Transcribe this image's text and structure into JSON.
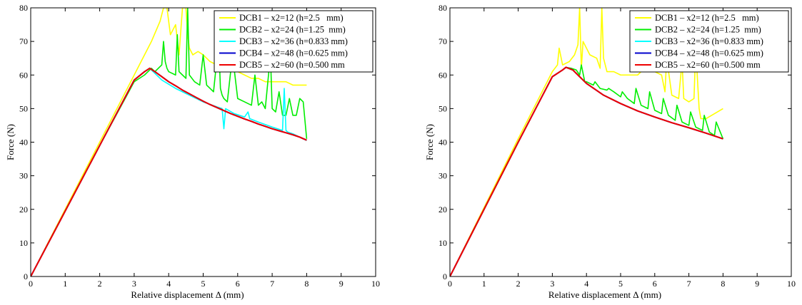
{
  "chart_data": [
    {
      "type": "line",
      "xlabel": "Relative displacement Δ (mm)",
      "ylabel": "Force (N)",
      "xlim": [
        0,
        10
      ],
      "ylim": [
        0,
        80
      ],
      "xticks": [
        "0",
        "1",
        "2",
        "3",
        "4",
        "5",
        "6",
        "7",
        "8",
        "9",
        "10"
      ],
      "yticks": [
        "0",
        "10",
        "20",
        "30",
        "40",
        "50",
        "60",
        "70",
        "80"
      ],
      "grid": false,
      "legend": "top-right",
      "series": [
        {
          "name": "DCB1 – x2=12 (h=2.5   mm)",
          "color": "#ffff00",
          "x": [
            0,
            1,
            2,
            3,
            3.5,
            3.75,
            3.85,
            3.95,
            4.05,
            4.2,
            4.3,
            4.4,
            4.5,
            4.55,
            4.6,
            4.7,
            4.85,
            5.0,
            5.2,
            5.4,
            5.6,
            5.8,
            6.0,
            6.2,
            6.4,
            6.6,
            6.8,
            7.0,
            7.2,
            7.4,
            7.6,
            7.8,
            8.0
          ],
          "y": [
            0,
            20,
            40,
            60,
            70,
            76,
            80,
            80,
            72,
            75,
            66,
            80,
            80,
            72,
            68,
            66,
            67,
            66,
            64,
            63,
            62,
            61,
            61,
            60,
            59,
            59,
            58,
            58,
            58,
            58,
            57,
            57,
            57
          ]
        },
        {
          "name": "DCB2 – x2=24 (h=1.25  mm)",
          "color": "#00ee00",
          "x": [
            0,
            1,
            2,
            3,
            3.3,
            3.5,
            3.6,
            3.7,
            3.8,
            3.85,
            3.9,
            3.95,
            4.0,
            4.2,
            4.25,
            4.3,
            4.4,
            4.5,
            4.55,
            4.6,
            4.75,
            4.9,
            5.0,
            5.1,
            5.2,
            5.3,
            5.45,
            5.5,
            5.55,
            5.6,
            5.7,
            5.85,
            6.0,
            6.2,
            6.4,
            6.5,
            6.6,
            6.7,
            6.8,
            6.95,
            7.0,
            7.1,
            7.2,
            7.3,
            7.4,
            7.5,
            7.6,
            7.7,
            7.8,
            7.9,
            8.0
          ],
          "y": [
            0,
            19.5,
            39,
            58,
            60,
            62,
            61,
            62,
            63,
            70,
            64,
            62,
            61,
            60,
            72,
            61,
            60,
            59,
            80,
            60,
            58,
            57,
            66,
            57,
            56,
            55,
            70,
            56,
            54,
            53,
            52,
            66,
            53,
            52,
            51,
            60,
            51,
            52,
            50,
            66,
            50,
            49,
            55,
            48,
            48,
            53,
            48,
            48,
            53,
            52,
            41
          ]
        },
        {
          "name": "DCB3 – x2=36 (h=0.833 mm)",
          "color": "#00ffff",
          "x": [
            0,
            1,
            2,
            3,
            3.3,
            3.45,
            3.5,
            3.8,
            4.2,
            4.6,
            5.0,
            5.4,
            5.55,
            5.6,
            5.65,
            5.9,
            6.2,
            6.3,
            6.35,
            6.6,
            7.0,
            7.3,
            7.35,
            7.4,
            7.45,
            7.6,
            8.0
          ],
          "y": [
            0,
            19.5,
            39,
            58.5,
            61,
            62,
            61.5,
            58.5,
            56,
            54,
            52,
            50.5,
            50,
            44,
            50,
            48.5,
            47.5,
            49,
            47,
            46,
            44.5,
            43.5,
            56,
            43.5,
            43,
            42.5,
            40.5
          ]
        },
        {
          "name": "DCB4 – x2=48 (h=0.625 mm)",
          "color": "#0000cc",
          "x": [
            0,
            1,
            2,
            3,
            3.3,
            3.45,
            3.6,
            3.8,
            4.0,
            4.2,
            4.4,
            4.6,
            4.8,
            5.0,
            5.2,
            5.4,
            5.6,
            5.8,
            6.0,
            6.2,
            6.4,
            6.6,
            6.8,
            7.0,
            7.2,
            7.4,
            7.6,
            7.8,
            8.0
          ],
          "y": [
            0,
            19.5,
            39,
            58.5,
            61,
            62,
            61,
            59.5,
            58,
            56.8,
            55.5,
            54.4,
            53.3,
            52.2,
            51.2,
            50.3,
            49.4,
            48.5,
            47.7,
            46.9,
            46.2,
            45.4,
            44.7,
            44,
            43.4,
            42.8,
            42.2,
            41.5,
            40.6
          ]
        },
        {
          "name": "DCB5 – x2=60 (h=0.500 mm",
          "color": "#ee0000",
          "x": [
            0,
            1,
            2,
            3,
            3.3,
            3.45,
            3.6,
            3.8,
            4.0,
            4.2,
            4.4,
            4.6,
            4.8,
            5.0,
            5.2,
            5.4,
            5.6,
            5.8,
            6.0,
            6.2,
            6.4,
            6.6,
            6.8,
            7.0,
            7.2,
            7.4,
            7.6,
            7.8,
            8.0
          ],
          "y": [
            0,
            19.5,
            39,
            58.5,
            61,
            62,
            61,
            59.5,
            58,
            56.8,
            55.5,
            54.4,
            53.3,
            52.2,
            51.2,
            50.3,
            49.4,
            48.5,
            47.7,
            46.9,
            46.2,
            45.4,
            44.7,
            44,
            43.4,
            42.8,
            42.2,
            41.5,
            40.6
          ]
        }
      ]
    },
    {
      "type": "line",
      "xlabel": "Relative displacement Δ (mm)",
      "ylabel": "Force (N)",
      "xlim": [
        0,
        10
      ],
      "ylim": [
        0,
        80
      ],
      "xticks": [
        "0",
        "1",
        "2",
        "3",
        "4",
        "5",
        "6",
        "7",
        "8",
        "9",
        "10"
      ],
      "yticks": [
        "0",
        "10",
        "20",
        "30",
        "40",
        "50",
        "60",
        "70",
        "80"
      ],
      "grid": false,
      "legend": "top-right",
      "series": [
        {
          "name": "DCB1 – x2=12 (h=2.5   mm)",
          "color": "#ffff00",
          "x": [
            0,
            1,
            2,
            3,
            3.15,
            3.2,
            3.3,
            3.5,
            3.65,
            3.75,
            3.8,
            3.85,
            3.9,
            4.0,
            4.1,
            4.3,
            4.4,
            4.45,
            4.5,
            4.55,
            4.6,
            4.8,
            5.0,
            5.5,
            5.6,
            5.7,
            6.0,
            6.2,
            6.3,
            6.35,
            6.5,
            6.7,
            6.8,
            6.85,
            7.0,
            7.15,
            7.2,
            7.3,
            7.35,
            7.5,
            8.0
          ],
          "y": [
            0,
            20.5,
            41,
            61,
            63,
            68,
            63,
            64,
            66,
            69,
            80,
            62,
            70,
            68,
            66,
            65,
            62,
            80,
            65,
            63,
            61,
            61,
            60,
            60,
            61,
            61,
            61,
            60,
            55,
            65,
            54,
            53,
            64,
            53,
            52,
            53,
            68,
            50,
            47,
            47,
            50
          ]
        },
        {
          "name": "DCB2 – x2=24 (h=1.25  mm)",
          "color": "#00ee00",
          "x": [
            0,
            1,
            2,
            3,
            3.3,
            3.4,
            3.55,
            3.7,
            3.8,
            3.85,
            3.95,
            4.0,
            4.2,
            4.25,
            4.4,
            4.6,
            4.65,
            4.8,
            5.0,
            5.05,
            5.2,
            5.4,
            5.45,
            5.6,
            5.8,
            5.85,
            6.0,
            6.2,
            6.25,
            6.4,
            6.6,
            6.65,
            6.8,
            7.0,
            7.05,
            7.2,
            7.4,
            7.45,
            7.6,
            7.75,
            7.8,
            8.0
          ],
          "y": [
            0,
            20,
            40,
            59.5,
            61.5,
            62.3,
            62,
            61.5,
            60,
            63,
            58,
            58,
            57,
            58,
            56,
            55.5,
            56,
            55,
            53.5,
            55,
            53,
            51.5,
            56,
            51,
            50,
            55,
            49.5,
            48.5,
            53,
            48,
            46.5,
            51,
            46,
            45,
            49,
            44.5,
            43.5,
            48,
            43,
            42,
            46,
            41
          ]
        },
        {
          "name": "DCB3 – x2=36 (h=0.833 mm)",
          "color": "#00ffff",
          "x": [
            0,
            1,
            2,
            3,
            3.3,
            3.4,
            3.6,
            3.8,
            4.0,
            4.5,
            5.0,
            5.5,
            6.0,
            6.5,
            7.0,
            7.5,
            8.0
          ],
          "y": [
            0,
            20,
            40,
            59.5,
            61.5,
            62.3,
            61.5,
            59.5,
            57.5,
            54,
            51.5,
            49.3,
            47.5,
            45.8,
            44.3,
            42.7,
            41
          ]
        },
        {
          "name": "DCB4 – x2=48 (h=0.625 mm)",
          "color": "#0000cc",
          "x": [
            0,
            1,
            2,
            3,
            3.3,
            3.4,
            3.6,
            3.8,
            4.0,
            4.5,
            5.0,
            5.5,
            6.0,
            6.5,
            7.0,
            7.5,
            8.0
          ],
          "y": [
            0,
            20,
            40,
            59.5,
            61.5,
            62.3,
            61.5,
            59.5,
            57.5,
            54,
            51.5,
            49.3,
            47.5,
            45.8,
            44.3,
            42.7,
            41
          ]
        },
        {
          "name": "DCB5 – x2=60 (h=0.500 mm",
          "color": "#ee0000",
          "x": [
            0,
            1,
            2,
            3,
            3.3,
            3.4,
            3.6,
            3.8,
            4.0,
            4.5,
            5.0,
            5.5,
            6.0,
            6.5,
            7.0,
            7.5,
            8.0
          ],
          "y": [
            0,
            20,
            40,
            59.5,
            61.5,
            62.3,
            61.5,
            59.5,
            57.5,
            54,
            51.5,
            49.3,
            47.5,
            45.8,
            44.3,
            42.7,
            41
          ]
        }
      ]
    }
  ]
}
